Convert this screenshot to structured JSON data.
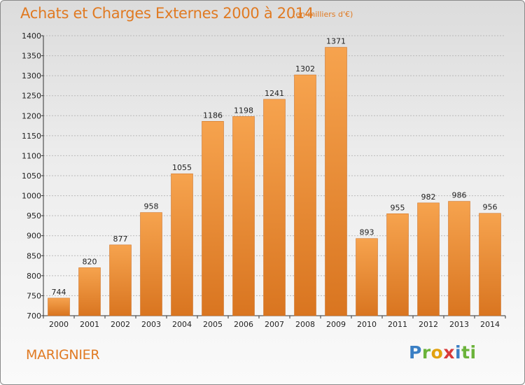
{
  "title": "Achats et Charges Externes 2000 à 2014",
  "unit_note": "(en milliers d'€)",
  "city": "MARIGNIER",
  "logo_text": "Proxiti",
  "colors": {
    "bar_light": "#f6a34e",
    "bar_dark": "#d97520",
    "text_accent": "#e07a22"
  },
  "chart_data": {
    "type": "bar",
    "title": "Achats et Charges Externes 2000 à 2014",
    "subtitle": "(en milliers d'€)",
    "xlabel": "",
    "ylabel": "",
    "categories": [
      "2000",
      "2001",
      "2002",
      "2003",
      "2004",
      "2005",
      "2006",
      "2007",
      "2008",
      "2009",
      "2010",
      "2011",
      "2012",
      "2013",
      "2014"
    ],
    "values": [
      744,
      820,
      877,
      958,
      1055,
      1186,
      1198,
      1241,
      1302,
      1371,
      893,
      955,
      982,
      986,
      956
    ],
    "ylim": [
      700,
      1400
    ],
    "yticks": [
      700,
      750,
      800,
      850,
      900,
      950,
      1000,
      1050,
      1100,
      1150,
      1200,
      1250,
      1300,
      1350,
      1400
    ],
    "grid": true,
    "legend": "none"
  }
}
